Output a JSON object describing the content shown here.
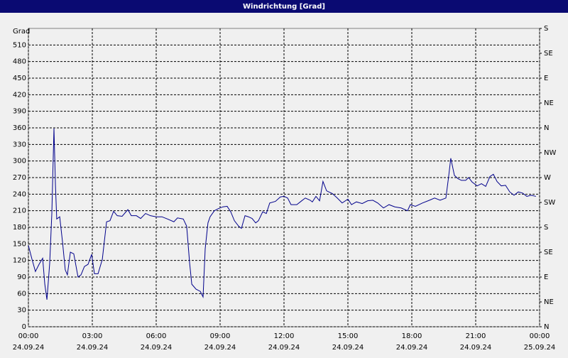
{
  "chart_data": {
    "type": "line",
    "title": "Windrichtung [Grad]",
    "y_label": "Grad",
    "xlim": [
      0,
      24
    ],
    "xticks": [
      {
        "value": 0,
        "label": "00:00",
        "date": "24.09.24"
      },
      {
        "value": 3,
        "label": "03:00",
        "date": "24.09.24"
      },
      {
        "value": 6,
        "label": "06:00",
        "date": "24.09.24"
      },
      {
        "value": 9,
        "label": "09:00",
        "date": "24.09.24"
      },
      {
        "value": 12,
        "label": "12:00",
        "date": "24.09.24"
      },
      {
        "value": 15,
        "label": "15:00",
        "date": "24.09.24"
      },
      {
        "value": 18,
        "label": "18:00",
        "date": "24.09.24"
      },
      {
        "value": 21,
        "label": "21:00",
        "date": "24.09.24"
      },
      {
        "value": 24,
        "label": "00:00",
        "date": "25.09.24"
      }
    ],
    "ylim": [
      0,
      540
    ],
    "yticks": [
      0,
      30,
      60,
      90,
      120,
      150,
      180,
      210,
      240,
      270,
      300,
      330,
      360,
      390,
      420,
      450,
      480,
      510
    ],
    "y2lim": [
      0,
      540
    ],
    "y2ticks": [
      {
        "value": 0,
        "label": "N"
      },
      {
        "value": 45,
        "label": "NE"
      },
      {
        "value": 90,
        "label": "E"
      },
      {
        "value": 135,
        "label": "SE"
      },
      {
        "value": 180,
        "label": "S"
      },
      {
        "value": 225,
        "label": "SW"
      },
      {
        "value": 270,
        "label": "W"
      },
      {
        "value": 315,
        "label": "NW"
      },
      {
        "value": 360,
        "label": "N"
      },
      {
        "value": 405,
        "label": "NE"
      },
      {
        "value": 450,
        "label": "E"
      },
      {
        "value": 495,
        "label": "SE"
      },
      {
        "value": 540,
        "label": "S"
      }
    ],
    "grid": true,
    "x": [
      0,
      0.17,
      0.33,
      0.5,
      0.67,
      0.77,
      0.87,
      1,
      1.1,
      1.2,
      1.27,
      1.33,
      1.47,
      1.6,
      1.73,
      1.83,
      1.97,
      2.13,
      2.33,
      2.47,
      2.63,
      2.8,
      2.97,
      3.1,
      3.27,
      3.47,
      3.67,
      3.83,
      4,
      4.17,
      4.4,
      4.67,
      4.83,
      5.07,
      5.27,
      5.5,
      5.73,
      6,
      6.27,
      6.53,
      6.83,
      7,
      7.27,
      7.43,
      7.57,
      7.67,
      7.87,
      8.07,
      8.2,
      8.3,
      8.43,
      8.53,
      8.73,
      8.93,
      9.13,
      9.33,
      9.5,
      9.67,
      9.87,
      10,
      10.17,
      10.33,
      10.5,
      10.67,
      10.8,
      11,
      11.17,
      11.33,
      11.6,
      11.83,
      12,
      12.17,
      12.33,
      12.6,
      12.83,
      13,
      13.23,
      13.33,
      13.5,
      13.67,
      13.83,
      14,
      14.27,
      14.5,
      14.73,
      15,
      15.17,
      15.4,
      15.67,
      15.93,
      16.17,
      16.4,
      16.67,
      16.93,
      17.2,
      17.5,
      17.8,
      17.93,
      18.17,
      18.5,
      18.83,
      19.07,
      19.33,
      19.6,
      19.73,
      19.83,
      20,
      20.17,
      20.33,
      20.53,
      20.67,
      20.83,
      21.07,
      21.27,
      21.47,
      21.67,
      21.83,
      22,
      22.2,
      22.4,
      22.6,
      22.8,
      23,
      23.2,
      23.4,
      23.6,
      23.83
    ],
    "series": [
      {
        "color": "#00008b",
        "values": [
          147,
          122,
          100,
          113,
          124,
          77,
          49,
          115,
          205,
          359,
          256,
          195,
          199,
          154,
          103,
          94,
          135,
          132,
          90,
          94,
          109,
          113,
          131,
          96,
          96,
          122,
          190,
          192,
          209,
          201,
          200,
          212,
          201,
          201,
          196,
          205,
          201,
          199,
          199,
          195,
          190,
          197,
          195,
          182,
          115,
          77,
          68,
          64,
          54,
          141,
          188,
          199,
          210,
          214,
          217,
          218,
          208,
          192,
          182,
          178,
          201,
          199,
          196,
          188,
          192,
          208,
          205,
          224,
          227,
          235,
          236,
          233,
          221,
          221,
          228,
          233,
          229,
          226,
          236,
          228,
          263,
          246,
          241,
          233,
          224,
          231,
          221,
          226,
          223,
          228,
          229,
          224,
          215,
          221,
          217,
          215,
          210,
          221,
          218,
          224,
          229,
          233,
          229,
          233,
          272,
          305,
          274,
          268,
          265,
          265,
          270,
          262,
          255,
          259,
          254,
          272,
          276,
          263,
          255,
          256,
          244,
          238,
          244,
          242,
          236,
          238,
          236
        ]
      }
    ]
  }
}
